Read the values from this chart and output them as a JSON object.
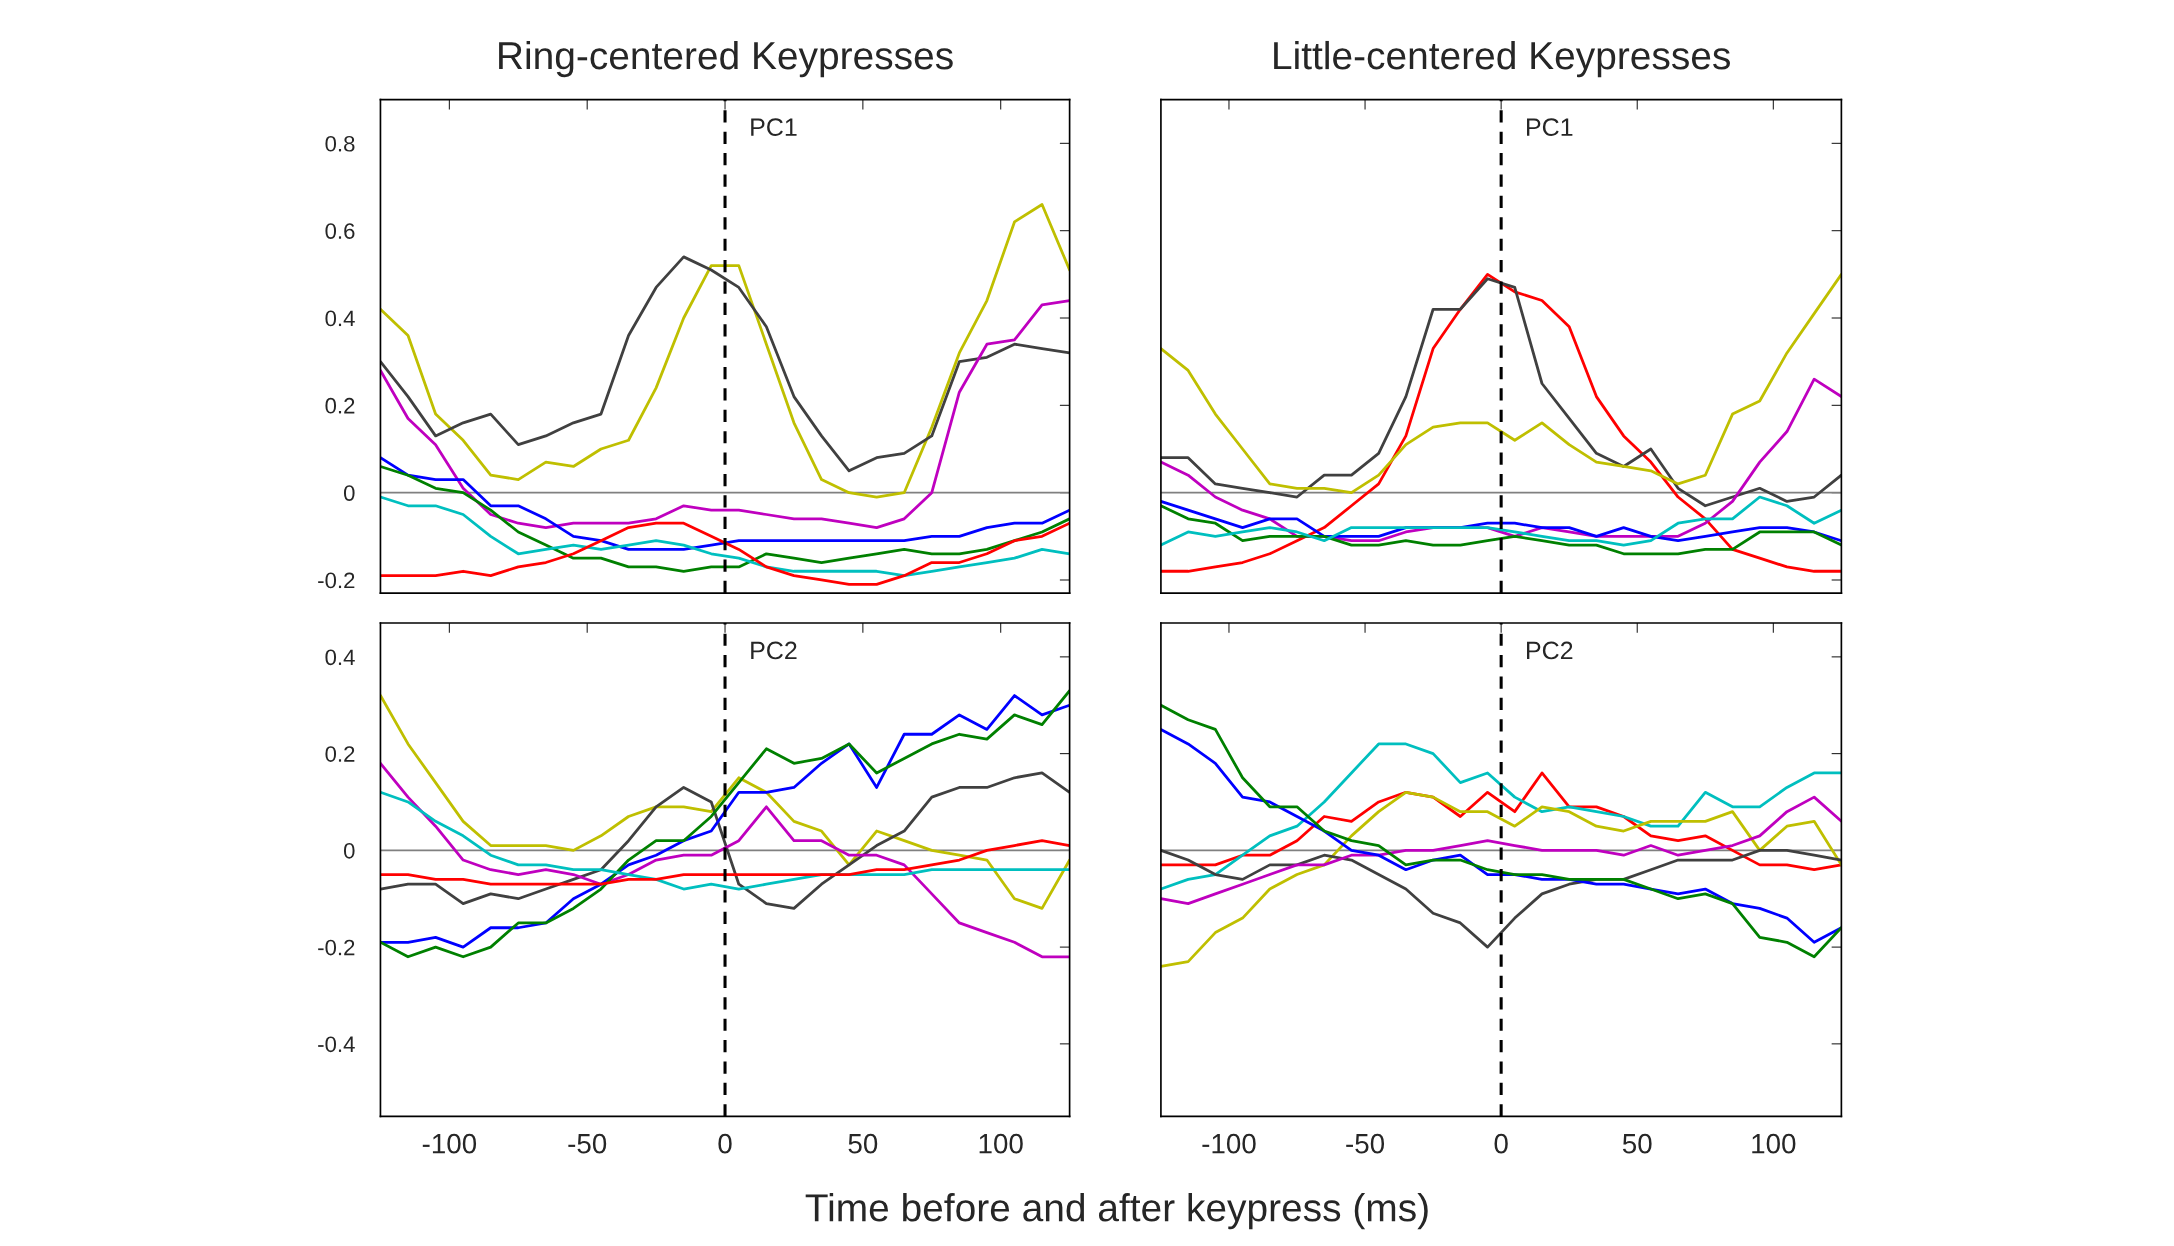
{
  "chart_data": [
    {
      "type": "line",
      "title": "Ring-centered Keypresses",
      "annotations": [
        "PC1"
      ],
      "xlim": [
        -125,
        125
      ],
      "xticks": [
        -100,
        -50,
        0,
        50,
        100
      ],
      "ylim": [
        -0.23,
        0.9
      ],
      "yticks": [
        -0.2,
        0,
        0.2,
        0.4,
        0.6,
        0.8
      ],
      "tick_labels": "y",
      "grid": false,
      "ref_lines": [
        {
          "axis": "x",
          "value": 0,
          "color": "#000000",
          "line_style": "dashed"
        },
        {
          "axis": "y",
          "value": 0,
          "color": "#808080",
          "line_style": "solid"
        }
      ],
      "x": [
        -125,
        -115,
        -105,
        -95,
        -85,
        -75,
        -65,
        -55,
        -45,
        -35,
        -25,
        -15,
        -5,
        5,
        15,
        25,
        35,
        45,
        55,
        65,
        75,
        85,
        95,
        105,
        115,
        125
      ],
      "series": [
        {
          "color": "#bfbf00",
          "values": [
            0.42,
            0.36,
            0.18,
            0.12,
            0.04,
            0.03,
            0.07,
            0.06,
            0.1,
            0.12,
            0.24,
            0.4,
            0.52,
            0.52,
            0.34,
            0.16,
            0.03,
            0.0,
            -0.01,
            0.0,
            0.15,
            0.32,
            0.44,
            0.62,
            0.66,
            0.51
          ]
        },
        {
          "color": "#404040",
          "values": [
            0.3,
            0.22,
            0.13,
            0.16,
            0.18,
            0.11,
            0.13,
            0.16,
            0.18,
            0.36,
            0.47,
            0.54,
            0.51,
            0.47,
            0.38,
            0.22,
            0.13,
            0.05,
            0.08,
            0.09,
            0.13,
            0.3,
            0.31,
            0.34,
            0.33,
            0.32
          ]
        },
        {
          "color": "#bf00bf",
          "values": [
            0.28,
            0.17,
            0.11,
            0.01,
            -0.05,
            -0.07,
            -0.08,
            -0.07,
            -0.07,
            -0.07,
            -0.06,
            -0.03,
            -0.04,
            -0.04,
            -0.05,
            -0.06,
            -0.06,
            -0.07,
            -0.08,
            -0.06,
            0.0,
            0.23,
            0.34,
            0.35,
            0.43,
            0.44
          ]
        },
        {
          "color": "#0000ff",
          "values": [
            0.08,
            0.04,
            0.03,
            0.03,
            -0.03,
            -0.03,
            -0.06,
            -0.1,
            -0.11,
            -0.13,
            -0.13,
            -0.13,
            -0.12,
            -0.11,
            -0.11,
            -0.11,
            -0.11,
            -0.11,
            -0.11,
            -0.11,
            -0.1,
            -0.1,
            -0.08,
            -0.07,
            -0.07,
            -0.04
          ]
        },
        {
          "color": "#008000",
          "values": [
            0.06,
            0.04,
            0.01,
            0.0,
            -0.04,
            -0.09,
            -0.12,
            -0.15,
            -0.15,
            -0.17,
            -0.17,
            -0.18,
            -0.17,
            -0.17,
            -0.14,
            -0.15,
            -0.16,
            -0.15,
            -0.14,
            -0.13,
            -0.14,
            -0.14,
            -0.13,
            -0.11,
            -0.09,
            -0.06
          ]
        },
        {
          "color": "#00bfbf",
          "values": [
            -0.01,
            -0.03,
            -0.03,
            -0.05,
            -0.1,
            -0.14,
            -0.13,
            -0.12,
            -0.13,
            -0.12,
            -0.11,
            -0.12,
            -0.14,
            -0.15,
            -0.17,
            -0.18,
            -0.18,
            -0.18,
            -0.18,
            -0.19,
            -0.18,
            -0.17,
            -0.16,
            -0.15,
            -0.13,
            -0.14
          ]
        },
        {
          "color": "#ff0000",
          "values": [
            -0.19,
            -0.19,
            -0.19,
            -0.18,
            -0.19,
            -0.17,
            -0.16,
            -0.14,
            -0.11,
            -0.08,
            -0.07,
            -0.07,
            -0.1,
            -0.13,
            -0.17,
            -0.19,
            -0.2,
            -0.21,
            -0.21,
            -0.19,
            -0.16,
            -0.16,
            -0.14,
            -0.11,
            -0.1,
            -0.07
          ]
        }
      ]
    },
    {
      "type": "line",
      "title": "Little-centered Keypresses",
      "annotations": [
        "PC1"
      ],
      "xlim": [
        -125,
        125
      ],
      "xticks": [
        -100,
        -50,
        0,
        50,
        100
      ],
      "ylim": [
        -0.23,
        0.9
      ],
      "yticks": [
        -0.2,
        0,
        0.2,
        0.4,
        0.6,
        0.8
      ],
      "tick_labels": false,
      "grid": false,
      "ref_lines": [
        {
          "axis": "x",
          "value": 0,
          "color": "#000000",
          "line_style": "dashed"
        },
        {
          "axis": "y",
          "value": 0,
          "color": "#808080",
          "line_style": "solid"
        }
      ],
      "x": [
        -125,
        -115,
        -105,
        -95,
        -85,
        -75,
        -65,
        -55,
        -45,
        -35,
        -25,
        -15,
        -5,
        5,
        15,
        25,
        35,
        45,
        55,
        65,
        75,
        85,
        95,
        105,
        115,
        125
      ],
      "series": [
        {
          "color": "#ff0000",
          "values": [
            -0.18,
            -0.18,
            -0.17,
            -0.16,
            -0.14,
            -0.11,
            -0.08,
            -0.03,
            0.02,
            0.13,
            0.33,
            0.42,
            0.5,
            0.46,
            0.44,
            0.38,
            0.22,
            0.13,
            0.07,
            -0.01,
            -0.06,
            -0.13,
            -0.15,
            -0.17,
            -0.18,
            -0.18
          ]
        },
        {
          "color": "#404040",
          "values": [
            0.08,
            0.08,
            0.02,
            0.01,
            0.0,
            -0.01,
            0.04,
            0.04,
            0.09,
            0.22,
            0.42,
            0.42,
            0.49,
            0.47,
            0.25,
            0.17,
            0.09,
            0.06,
            0.1,
            0.01,
            -0.03,
            -0.01,
            0.01,
            -0.02,
            -0.01,
            0.04
          ]
        },
        {
          "color": "#bfbf00",
          "values": [
            0.33,
            0.28,
            0.18,
            0.1,
            0.02,
            0.01,
            0.01,
            0.0,
            0.04,
            0.11,
            0.15,
            0.16,
            0.16,
            0.12,
            0.16,
            0.11,
            0.07,
            0.06,
            0.05,
            0.02,
            0.04,
            0.18,
            0.21,
            0.32,
            0.41,
            0.5
          ]
        },
        {
          "color": "#bf00bf",
          "values": [
            0.07,
            0.04,
            -0.01,
            -0.04,
            -0.06,
            -0.1,
            -0.1,
            -0.11,
            -0.11,
            -0.09,
            -0.08,
            -0.08,
            -0.08,
            -0.1,
            -0.08,
            -0.09,
            -0.1,
            -0.1,
            -0.1,
            -0.1,
            -0.07,
            -0.02,
            0.07,
            0.14,
            0.26,
            0.22
          ]
        },
        {
          "color": "#0000ff",
          "values": [
            -0.02,
            -0.04,
            -0.06,
            -0.08,
            -0.06,
            -0.06,
            -0.1,
            -0.1,
            -0.1,
            -0.08,
            -0.08,
            -0.08,
            -0.07,
            -0.07,
            -0.08,
            -0.08,
            -0.1,
            -0.08,
            -0.1,
            -0.11,
            -0.1,
            -0.09,
            -0.08,
            -0.08,
            -0.09,
            -0.11
          ]
        },
        {
          "color": "#008000",
          "values": [
            -0.03,
            -0.06,
            -0.07,
            -0.11,
            -0.1,
            -0.1,
            -0.1,
            -0.12,
            -0.12,
            -0.11,
            -0.12,
            -0.12,
            -0.11,
            -0.1,
            -0.11,
            -0.12,
            -0.12,
            -0.14,
            -0.14,
            -0.14,
            -0.13,
            -0.13,
            -0.09,
            -0.09,
            -0.09,
            -0.12
          ]
        },
        {
          "color": "#00bfbf",
          "values": [
            -0.12,
            -0.09,
            -0.1,
            -0.09,
            -0.08,
            -0.09,
            -0.11,
            -0.08,
            -0.08,
            -0.08,
            -0.08,
            -0.08,
            -0.08,
            -0.09,
            -0.1,
            -0.11,
            -0.11,
            -0.12,
            -0.11,
            -0.07,
            -0.06,
            -0.06,
            -0.01,
            -0.03,
            -0.07,
            -0.04
          ]
        }
      ]
    },
    {
      "type": "line",
      "xlabel": "Time before and after keypress (ms)",
      "annotations": [
        "PC2"
      ],
      "xlim": [
        -125,
        125
      ],
      "xticks": [
        -100,
        -50,
        0,
        50,
        100
      ],
      "ylim": [
        -0.55,
        0.47
      ],
      "yticks": [
        -0.4,
        -0.2,
        0,
        0.2,
        0.4
      ],
      "grid": false,
      "ref_lines": [
        {
          "axis": "x",
          "value": 0,
          "color": "#000000",
          "line_style": "dashed"
        },
        {
          "axis": "y",
          "value": 0,
          "color": "#808080",
          "line_style": "solid"
        }
      ],
      "x": [
        -125,
        -115,
        -105,
        -95,
        -85,
        -75,
        -65,
        -55,
        -45,
        -35,
        -25,
        -15,
        -5,
        5,
        15,
        25,
        35,
        45,
        55,
        65,
        75,
        85,
        95,
        105,
        115,
        125
      ],
      "series": [
        {
          "color": "#bfbf00",
          "values": [
            0.32,
            0.22,
            0.14,
            0.06,
            0.01,
            0.01,
            0.01,
            0.0,
            0.03,
            0.07,
            0.09,
            0.09,
            0.08,
            0.15,
            0.12,
            0.06,
            0.04,
            -0.03,
            0.04,
            0.02,
            0.0,
            -0.01,
            -0.02,
            -0.1,
            -0.12,
            -0.02
          ]
        },
        {
          "color": "#404040",
          "values": [
            -0.08,
            -0.07,
            -0.07,
            -0.11,
            -0.09,
            -0.1,
            -0.08,
            -0.06,
            -0.04,
            0.02,
            0.09,
            0.13,
            0.1,
            -0.07,
            -0.11,
            -0.12,
            -0.07,
            -0.03,
            0.01,
            0.04,
            0.11,
            0.13,
            0.13,
            0.15,
            0.16,
            0.12
          ]
        },
        {
          "color": "#bf00bf",
          "values": [
            0.18,
            0.11,
            0.05,
            -0.02,
            -0.04,
            -0.05,
            -0.04,
            -0.05,
            -0.07,
            -0.05,
            -0.02,
            -0.01,
            -0.01,
            0.02,
            0.09,
            0.02,
            0.02,
            -0.01,
            -0.01,
            -0.03,
            -0.09,
            -0.15,
            -0.17,
            -0.19,
            -0.22,
            -0.22
          ]
        },
        {
          "color": "#0000ff",
          "values": [
            -0.19,
            -0.19,
            -0.18,
            -0.2,
            -0.16,
            -0.16,
            -0.15,
            -0.1,
            -0.07,
            -0.03,
            -0.01,
            0.02,
            0.04,
            0.12,
            0.12,
            0.13,
            0.18,
            0.22,
            0.13,
            0.24,
            0.24,
            0.28,
            0.25,
            0.32,
            0.28,
            0.3
          ]
        },
        {
          "color": "#008000",
          "values": [
            -0.19,
            -0.22,
            -0.2,
            -0.22,
            -0.2,
            -0.15,
            -0.15,
            -0.12,
            -0.08,
            -0.02,
            0.02,
            0.02,
            0.07,
            0.14,
            0.21,
            0.18,
            0.19,
            0.22,
            0.16,
            0.19,
            0.22,
            0.24,
            0.23,
            0.28,
            0.26,
            0.33
          ]
        },
        {
          "color": "#00bfbf",
          "values": [
            0.12,
            0.1,
            0.06,
            0.03,
            -0.01,
            -0.03,
            -0.03,
            -0.04,
            -0.04,
            -0.05,
            -0.06,
            -0.08,
            -0.07,
            -0.08,
            -0.07,
            -0.06,
            -0.05,
            -0.05,
            -0.05,
            -0.05,
            -0.04,
            -0.04,
            -0.04,
            -0.04,
            -0.04,
            -0.04
          ]
        },
        {
          "color": "#ff0000",
          "values": [
            -0.05,
            -0.05,
            -0.06,
            -0.06,
            -0.07,
            -0.07,
            -0.07,
            -0.07,
            -0.07,
            -0.06,
            -0.06,
            -0.05,
            -0.05,
            -0.05,
            -0.05,
            -0.05,
            -0.05,
            -0.05,
            -0.04,
            -0.04,
            -0.03,
            -0.02,
            0.0,
            0.01,
            0.02,
            0.01
          ]
        }
      ]
    },
    {
      "type": "line",
      "annotations": [
        "PC2"
      ],
      "xlim": [
        -125,
        125
      ],
      "xticks": [
        -100,
        -50,
        0,
        50,
        100
      ],
      "ylim": [
        -0.55,
        0.47
      ],
      "yticks": [
        -0.4,
        -0.2,
        0,
        0.2,
        0.4
      ],
      "tick_labels": "x",
      "grid": false,
      "ref_lines": [
        {
          "axis": "x",
          "value": 0,
          "color": "#000000",
          "line_style": "dashed"
        },
        {
          "axis": "y",
          "value": 0,
          "color": "#808080",
          "line_style": "solid"
        }
      ],
      "x": [
        -125,
        -115,
        -105,
        -95,
        -85,
        -75,
        -65,
        -55,
        -45,
        -35,
        -25,
        -15,
        -5,
        5,
        15,
        25,
        35,
        45,
        55,
        65,
        75,
        85,
        95,
        105,
        115,
        125
      ],
      "series": [
        {
          "color": "#ff0000",
          "values": [
            -0.03,
            -0.03,
            -0.03,
            -0.01,
            -0.01,
            0.02,
            0.07,
            0.06,
            0.1,
            0.12,
            0.11,
            0.07,
            0.12,
            0.08,
            0.16,
            0.09,
            0.09,
            0.07,
            0.03,
            0.02,
            0.03,
            0.0,
            -0.03,
            -0.03,
            -0.04,
            -0.03
          ]
        },
        {
          "color": "#00bfbf",
          "values": [
            -0.08,
            -0.06,
            -0.05,
            -0.01,
            0.03,
            0.05,
            0.1,
            0.16,
            0.22,
            0.22,
            0.2,
            0.14,
            0.16,
            0.11,
            0.08,
            0.09,
            0.08,
            0.07,
            0.05,
            0.05,
            0.12,
            0.09,
            0.09,
            0.13,
            0.16,
            0.16
          ]
        },
        {
          "color": "#bfbf00",
          "values": [
            -0.24,
            -0.23,
            -0.17,
            -0.14,
            -0.08,
            -0.05,
            -0.03,
            0.03,
            0.08,
            0.12,
            0.11,
            0.08,
            0.08,
            0.05,
            0.09,
            0.08,
            0.05,
            0.04,
            0.06,
            0.06,
            0.06,
            0.08,
            0.0,
            0.05,
            0.06,
            -0.03
          ]
        },
        {
          "color": "#404040",
          "values": [
            0.0,
            -0.02,
            -0.05,
            -0.06,
            -0.03,
            -0.03,
            -0.01,
            -0.02,
            -0.05,
            -0.08,
            -0.13,
            -0.15,
            -0.2,
            -0.14,
            -0.09,
            -0.07,
            -0.06,
            -0.06,
            -0.04,
            -0.02,
            -0.02,
            -0.02,
            0.0,
            0.0,
            -0.01,
            -0.02
          ]
        },
        {
          "color": "#bf00bf",
          "values": [
            -0.1,
            -0.11,
            -0.09,
            -0.07,
            -0.05,
            -0.03,
            -0.03,
            -0.01,
            -0.01,
            0.0,
            0.0,
            0.01,
            0.02,
            0.01,
            0.0,
            0.0,
            0.0,
            -0.01,
            0.01,
            -0.01,
            0.0,
            0.01,
            0.03,
            0.08,
            0.11,
            0.06
          ]
        },
        {
          "color": "#0000ff",
          "values": [
            0.25,
            0.22,
            0.18,
            0.11,
            0.1,
            0.07,
            0.04,
            0.0,
            -0.01,
            -0.04,
            -0.02,
            -0.01,
            -0.05,
            -0.05,
            -0.06,
            -0.06,
            -0.07,
            -0.07,
            -0.08,
            -0.09,
            -0.08,
            -0.11,
            -0.12,
            -0.14,
            -0.19,
            -0.16
          ]
        },
        {
          "color": "#008000",
          "values": [
            0.3,
            0.27,
            0.25,
            0.15,
            0.09,
            0.09,
            0.04,
            0.02,
            0.01,
            -0.03,
            -0.02,
            -0.02,
            -0.04,
            -0.05,
            -0.05,
            -0.06,
            -0.06,
            -0.06,
            -0.08,
            -0.1,
            -0.09,
            -0.11,
            -0.18,
            -0.19,
            -0.22,
            -0.16
          ]
        }
      ]
    }
  ]
}
